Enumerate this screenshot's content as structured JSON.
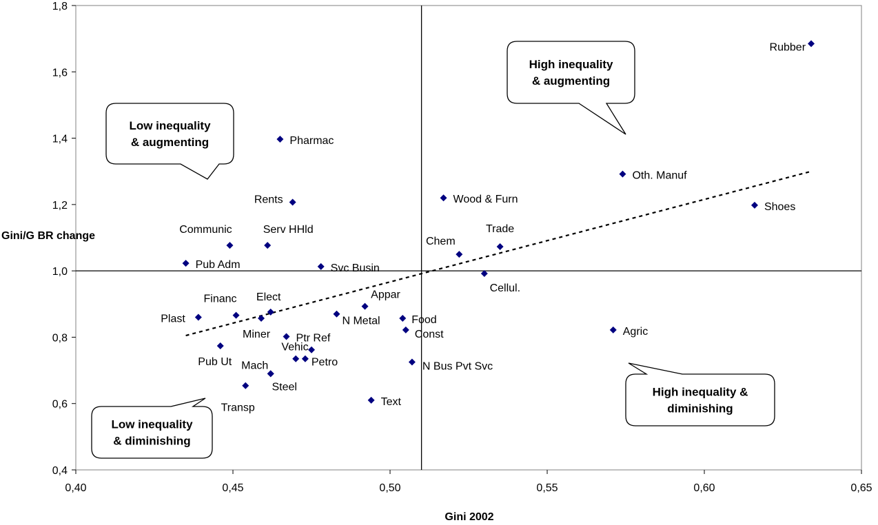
{
  "chart_data": {
    "type": "scatter",
    "title": "",
    "xlabel": "Gini 2002",
    "ylabel": "Gini/G BR change",
    "xlim": [
      0.4,
      0.65
    ],
    "ylim": [
      0.4,
      1.8
    ],
    "x_ticks": [
      "0,40",
      "0,45",
      "0,50",
      "0,55",
      "0,60",
      "0,65"
    ],
    "y_ticks": [
      "0,4",
      "0,6",
      "0,8",
      "1,0",
      "1,2",
      "1,4",
      "1,6",
      "1,8"
    ],
    "grid": false,
    "marker_color": "#000080",
    "reference_lines": {
      "x": 0.51,
      "y": 1.0
    },
    "trendline": {
      "style": "dotted",
      "x": [
        0.435,
        0.634
      ],
      "y": [
        0.805,
        1.3
      ]
    },
    "points": [
      {
        "label": "Rubber",
        "x": 0.634,
        "y": 1.685
      },
      {
        "label": "Pharmac",
        "x": 0.465,
        "y": 1.397
      },
      {
        "label": "Oth. Manuf",
        "x": 0.574,
        "y": 1.292
      },
      {
        "label": "Wood & Furn",
        "x": 0.517,
        "y": 1.22
      },
      {
        "label": "Rents",
        "x": 0.469,
        "y": 1.207
      },
      {
        "label": "Shoes",
        "x": 0.616,
        "y": 1.198
      },
      {
        "label": "Communic",
        "x": 0.449,
        "y": 1.077
      },
      {
        "label": "Serv HHld",
        "x": 0.461,
        "y": 1.077
      },
      {
        "label": "Trade",
        "x": 0.535,
        "y": 1.073
      },
      {
        "label": "Chem",
        "x": 0.522,
        "y": 1.05
      },
      {
        "label": "Pub Adm",
        "x": 0.435,
        "y": 1.023
      },
      {
        "label": "Svc Busin",
        "x": 0.478,
        "y": 1.013
      },
      {
        "label": "Cellul.",
        "x": 0.53,
        "y": 0.992
      },
      {
        "label": "Appar",
        "x": 0.492,
        "y": 0.893
      },
      {
        "label": "Elect",
        "x": 0.462,
        "y": 0.876
      },
      {
        "label": "N Metal",
        "x": 0.483,
        "y": 0.87
      },
      {
        "label": "Financ",
        "x": 0.451,
        "y": 0.866
      },
      {
        "label": "Plast",
        "x": 0.439,
        "y": 0.86
      },
      {
        "label": "Miner",
        "x": 0.459,
        "y": 0.857
      },
      {
        "label": "Food",
        "x": 0.504,
        "y": 0.857
      },
      {
        "label": "Const",
        "x": 0.505,
        "y": 0.822
      },
      {
        "label": "Agric",
        "x": 0.571,
        "y": 0.822
      },
      {
        "label": "Ptr Ref",
        "x": 0.467,
        "y": 0.802
      },
      {
        "label": "Pub Ut",
        "x": 0.446,
        "y": 0.774
      },
      {
        "label": "Vehic",
        "x": 0.475,
        "y": 0.762
      },
      {
        "label": "Petro",
        "x": 0.473,
        "y": 0.735
      },
      {
        "label": "",
        "x": 0.47,
        "y": 0.735
      },
      {
        "label": "N Bus Pvt Svc",
        "x": 0.507,
        "y": 0.725
      },
      {
        "label": "Mach",
        "x": 0.462,
        "y": 0.69
      },
      {
        "label": "Steel",
        "x": 0.462,
        "y": 0.69
      },
      {
        "label": "Transp",
        "x": 0.454,
        "y": 0.654
      },
      {
        "label": "Text",
        "x": 0.494,
        "y": 0.61
      }
    ],
    "callouts": [
      {
        "lines": [
          "High inequality",
          "& augmenting"
        ]
      },
      {
        "lines": [
          "Low inequality",
          "& augmenting"
        ]
      },
      {
        "lines": [
          "High inequality &",
          "diminishing"
        ]
      },
      {
        "lines": [
          "Low inequality",
          "& diminishing"
        ]
      }
    ]
  }
}
